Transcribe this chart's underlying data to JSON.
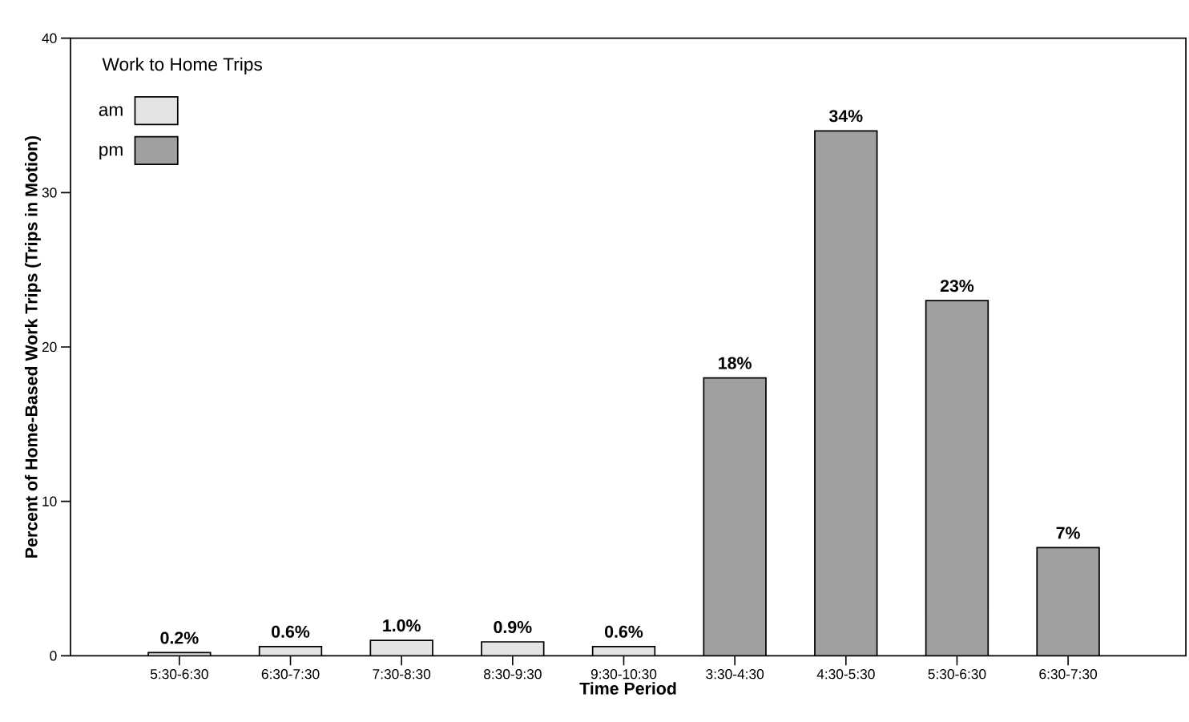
{
  "chart_data": {
    "type": "bar",
    "xlabel": "Time Period",
    "ylabel": "Percent of Home-Based Work Trips (Trips in Motion)",
    "legend_title": "Work to Home Trips",
    "categories": [
      "5:30-6:30",
      "6:30-7:30",
      "7:30-8:30",
      "8:30-9:30",
      "9:30-10:30",
      "3:30-4:30",
      "4:30-5:30",
      "5:30-6:30",
      "6:30-7:30"
    ],
    "series": [
      {
        "name": "am",
        "color": "#e4e4e4",
        "values": [
          0.2,
          0.6,
          1.0,
          0.9,
          0.6,
          null,
          null,
          null,
          null
        ],
        "value_labels": [
          "0.2%",
          "0.6%",
          "1.0%",
          "0.9%",
          "0.6%",
          null,
          null,
          null,
          null
        ]
      },
      {
        "name": "pm",
        "color": "#a0a0a0",
        "values": [
          null,
          null,
          null,
          null,
          null,
          18,
          34,
          23,
          7
        ],
        "value_labels": [
          null,
          null,
          null,
          null,
          null,
          "18%",
          "34%",
          "23%",
          "7%"
        ]
      }
    ],
    "ylim": [
      0,
      40
    ],
    "yticks": [
      0,
      10,
      20,
      30,
      40
    ],
    "grid": false,
    "legend": "top left"
  }
}
